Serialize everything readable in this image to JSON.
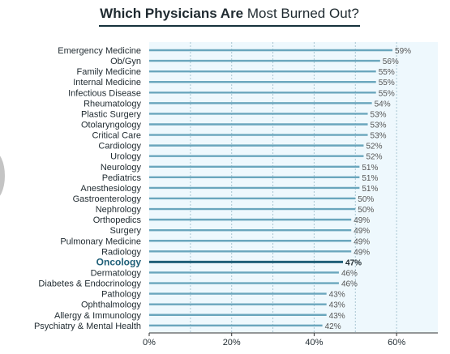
{
  "title": {
    "bold": "Which Physicians Are",
    "rest": " Most Burned Out?"
  },
  "colors": {
    "bar": "#6aa6bd",
    "highlight_bar": "#1f5f78",
    "highlight_label": "#1f5f78",
    "plot_background": "#eef8fd",
    "grid": "#a9c6d2",
    "text": "#1f2a30",
    "value_text": "#555555"
  },
  "chart_data": {
    "type": "bar",
    "orientation": "horizontal",
    "categories": [
      "Emergency Medicine",
      "Ob/Gyn",
      "Family Medicine",
      "Internal Medicine",
      "Infectious Disease",
      "Rheumatology",
      "Plastic Surgery",
      "Otolaryngology",
      "Critical Care",
      "Cardiology",
      "Urology",
      "Neurology",
      "Pediatrics",
      "Anesthesiology",
      "Gastroenterology",
      "Nephrology",
      "Orthopedics",
      "Surgery",
      "Pulmonary Medicine",
      "Radiology",
      "Oncology",
      "Dermatology",
      "Diabetes & Endocrinology",
      "Pathology",
      "Ophthalmology",
      "Allergy & Immunology",
      "Psychiatry & Mental Health"
    ],
    "values": [
      59,
      56,
      55,
      55,
      55,
      54,
      53,
      53,
      53,
      52,
      52,
      51,
      51,
      51,
      50,
      50,
      49,
      49,
      49,
      49,
      47,
      46,
      46,
      43,
      43,
      43,
      42
    ],
    "value_labels": [
      "59%",
      "56%",
      "55%",
      "55%",
      "55%",
      "54%",
      "53%",
      "53%",
      "53%",
      "52%",
      "52%",
      "51%",
      "51%",
      "51%",
      "50%",
      "50%",
      "49%",
      "49%",
      "49%",
      "49%",
      "47%",
      "46%",
      "46%",
      "43%",
      "43%",
      "43%",
      "42%"
    ],
    "highlight": "Oncology",
    "xlim": [
      0,
      70
    ],
    "xticks": [
      0,
      20,
      40,
      60
    ],
    "xtick_labels": [
      "0%",
      "20%",
      "40%",
      "60%"
    ],
    "minor_gridlines": [
      10,
      30,
      50
    ],
    "grid": true,
    "legend": "none",
    "xlabel": "",
    "ylabel": ""
  }
}
